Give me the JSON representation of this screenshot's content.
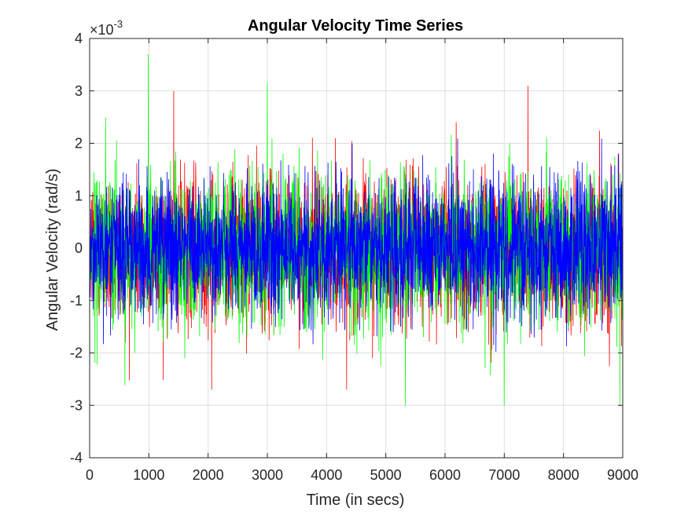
{
  "chart_data": {
    "type": "line",
    "title": "Angular Velocity Time Series",
    "xlabel": "Time (in secs)",
    "ylabel": "Angular Velocity (rad/s)",
    "y_exponent_base": "×10",
    "y_exponent_power": "-3",
    "xlim": [
      0,
      9000
    ],
    "ylim": [
      -4,
      4
    ],
    "y_scale_factor": 0.001,
    "xticks": [
      0,
      1000,
      2000,
      3000,
      4000,
      5000,
      6000,
      7000,
      8000,
      9000
    ],
    "xtick_labels": [
      "0",
      "1000",
      "2000",
      "3000",
      "4000",
      "5000",
      "6000",
      "7000",
      "8000",
      "9000"
    ],
    "yticks": [
      -4,
      -3,
      -2,
      -1,
      0,
      1,
      2,
      3,
      4
    ],
    "ytick_labels": [
      "-4",
      "-3",
      "-2",
      "-1",
      "0",
      "1",
      "2",
      "3",
      "4"
    ],
    "grid": true,
    "legend": "none",
    "series": [
      {
        "color": "#ff0000",
        "noise_std_e3": 0.7,
        "range_e3": [
          -2.8,
          3.1
        ],
        "peaks": [
          {
            "x": 1420,
            "y": 3.0
          },
          {
            "x": 7400,
            "y": 3.1
          },
          {
            "x": 2060,
            "y": -2.7
          }
        ]
      },
      {
        "color": "#00ff00",
        "noise_std_e3": 0.72,
        "range_e3": [
          -3.0,
          3.7
        ],
        "peaks": [
          {
            "x": 990,
            "y": 3.7
          },
          {
            "x": 3000,
            "y": 3.15
          },
          {
            "x": 5330,
            "y": -3.0
          },
          {
            "x": 7000,
            "y": -3.0
          },
          {
            "x": 8950,
            "y": -3.0
          }
        ]
      },
      {
        "color": "#0000ff",
        "noise_std_e3": 0.65,
        "range_e3": [
          -2.5,
          2.5
        ],
        "peaks": []
      }
    ]
  }
}
